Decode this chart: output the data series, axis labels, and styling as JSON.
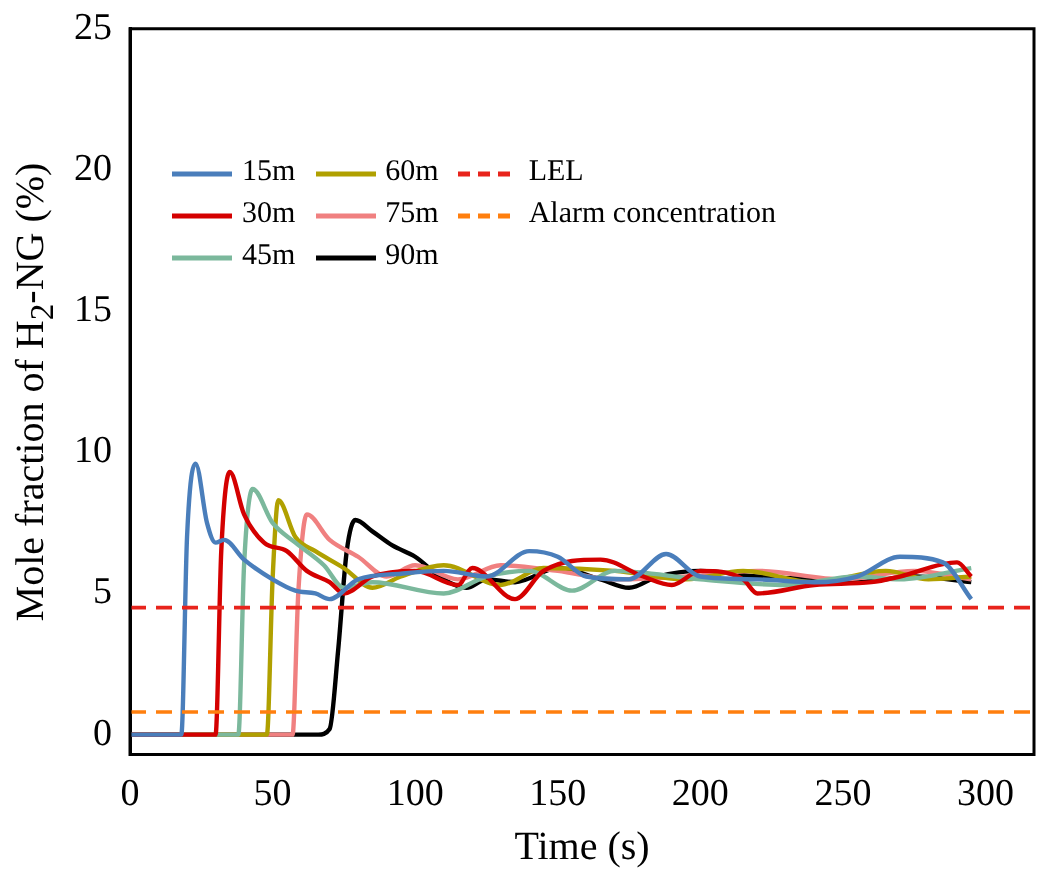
{
  "chart_data": {
    "type": "line",
    "xlabel": "Time (s)",
    "ylabel": "Mole fraction of H$_{2}$-NG (%)",
    "xlim": [
      0,
      317
    ],
    "xticks": [
      0,
      50,
      100,
      150,
      200,
      250,
      300
    ],
    "ylim": [
      -0.7,
      25
    ],
    "yticks": [
      0,
      5,
      10,
      15,
      20,
      25
    ],
    "grid": false,
    "legend": "top left",
    "marker": "none",
    "line_style": "solid",
    "series": [
      {
        "name": "15m",
        "color": "#4a7ebb",
        "x": [
          0,
          18,
          20,
          23,
          27,
          30,
          33,
          40,
          50,
          58,
          65,
          70,
          80,
          95,
          110,
          125,
          140,
          150,
          160,
          175,
          188,
          200,
          220,
          240,
          255,
          270,
          285,
          295
        ],
        "values": [
          0,
          0,
          7,
          9.6,
          7.5,
          6.8,
          6.9,
          6.2,
          5.5,
          5.1,
          5,
          4.8,
          5.5,
          5.7,
          5.8,
          5.6,
          6.5,
          6.3,
          5.6,
          5.5,
          6.4,
          5.6,
          5.5,
          5.4,
          5.6,
          6.3,
          6.1,
          4.8
        ]
      },
      {
        "name": "30m",
        "color": "#d40000",
        "x": [
          0,
          30,
          32,
          35,
          40,
          47,
          55,
          62,
          70,
          75,
          85,
          100,
          115,
          120,
          135,
          145,
          165,
          180,
          190,
          200,
          215,
          220,
          240,
          260,
          270,
          290,
          295
        ],
        "values": [
          0,
          0,
          6.5,
          9.3,
          7.8,
          6.8,
          6.5,
          5.8,
          5.4,
          5,
          5.6,
          5.8,
          5.3,
          5.9,
          4.8,
          5.8,
          6.2,
          5.6,
          5.3,
          5.8,
          5.5,
          5,
          5.3,
          5.4,
          5.6,
          6.1,
          5.6
        ]
      },
      {
        "name": "45m",
        "color": "#7bb89c",
        "x": [
          0,
          38,
          40,
          43,
          50,
          58,
          68,
          75,
          85,
          110,
          125,
          140,
          155,
          170,
          200,
          230,
          255,
          270,
          295
        ],
        "values": [
          0,
          0,
          6,
          8.7,
          7.5,
          6.8,
          6,
          5.2,
          5.4,
          5,
          5.6,
          5.8,
          5.1,
          5.8,
          5.5,
          5.3,
          5.6,
          5.5,
          5.9
        ]
      },
      {
        "name": "60m",
        "color": "#b0a000",
        "x": [
          0,
          48,
          50,
          52,
          58,
          65,
          75,
          85,
          95,
          110,
          130,
          145,
          170,
          195,
          215,
          240,
          265,
          280,
          295
        ],
        "values": [
          0,
          0,
          5.5,
          8.3,
          7,
          6.5,
          5.9,
          5.2,
          5.6,
          6,
          5.3,
          5.9,
          5.8,
          5.5,
          5.8,
          5.4,
          5.8,
          5.5,
          5.6
        ]
      },
      {
        "name": "75m",
        "color": "#f08080",
        "x": [
          0,
          57,
          59,
          62,
          70,
          80,
          90,
          100,
          115,
          130,
          150,
          170,
          195,
          220,
          250,
          275,
          295
        ],
        "values": [
          0,
          0,
          5,
          7.8,
          6.9,
          6.3,
          5.6,
          6,
          5.5,
          6,
          5.8,
          5.5,
          5.6,
          5.8,
          5.5,
          5.8,
          5.5
        ]
      },
      {
        "name": "90m",
        "color": "#000000",
        "x": [
          0,
          66,
          70,
          73,
          76,
          79,
          85,
          92,
          100,
          110,
          118,
          125,
          135,
          150,
          165,
          175,
          185,
          200,
          220,
          240,
          255,
          275,
          295
        ],
        "values": [
          0,
          0,
          0.2,
          3,
          6.5,
          7.6,
          7.2,
          6.7,
          6.3,
          5.5,
          5.2,
          5.5,
          5.4,
          5.9,
          5.5,
          5.2,
          5.6,
          5.8,
          5.6,
          5.5,
          5.4,
          5.6,
          5.4
        ]
      }
    ],
    "ref_lines": [
      {
        "axis": "y",
        "value": 4.5,
        "label": "LEL",
        "color": "#e8241c",
        "line_style": "dashed"
      },
      {
        "axis": "y",
        "value": 0.8,
        "label": "Alarm concentration",
        "color": "#ff7f0e",
        "line_style": "dashed"
      }
    ]
  }
}
